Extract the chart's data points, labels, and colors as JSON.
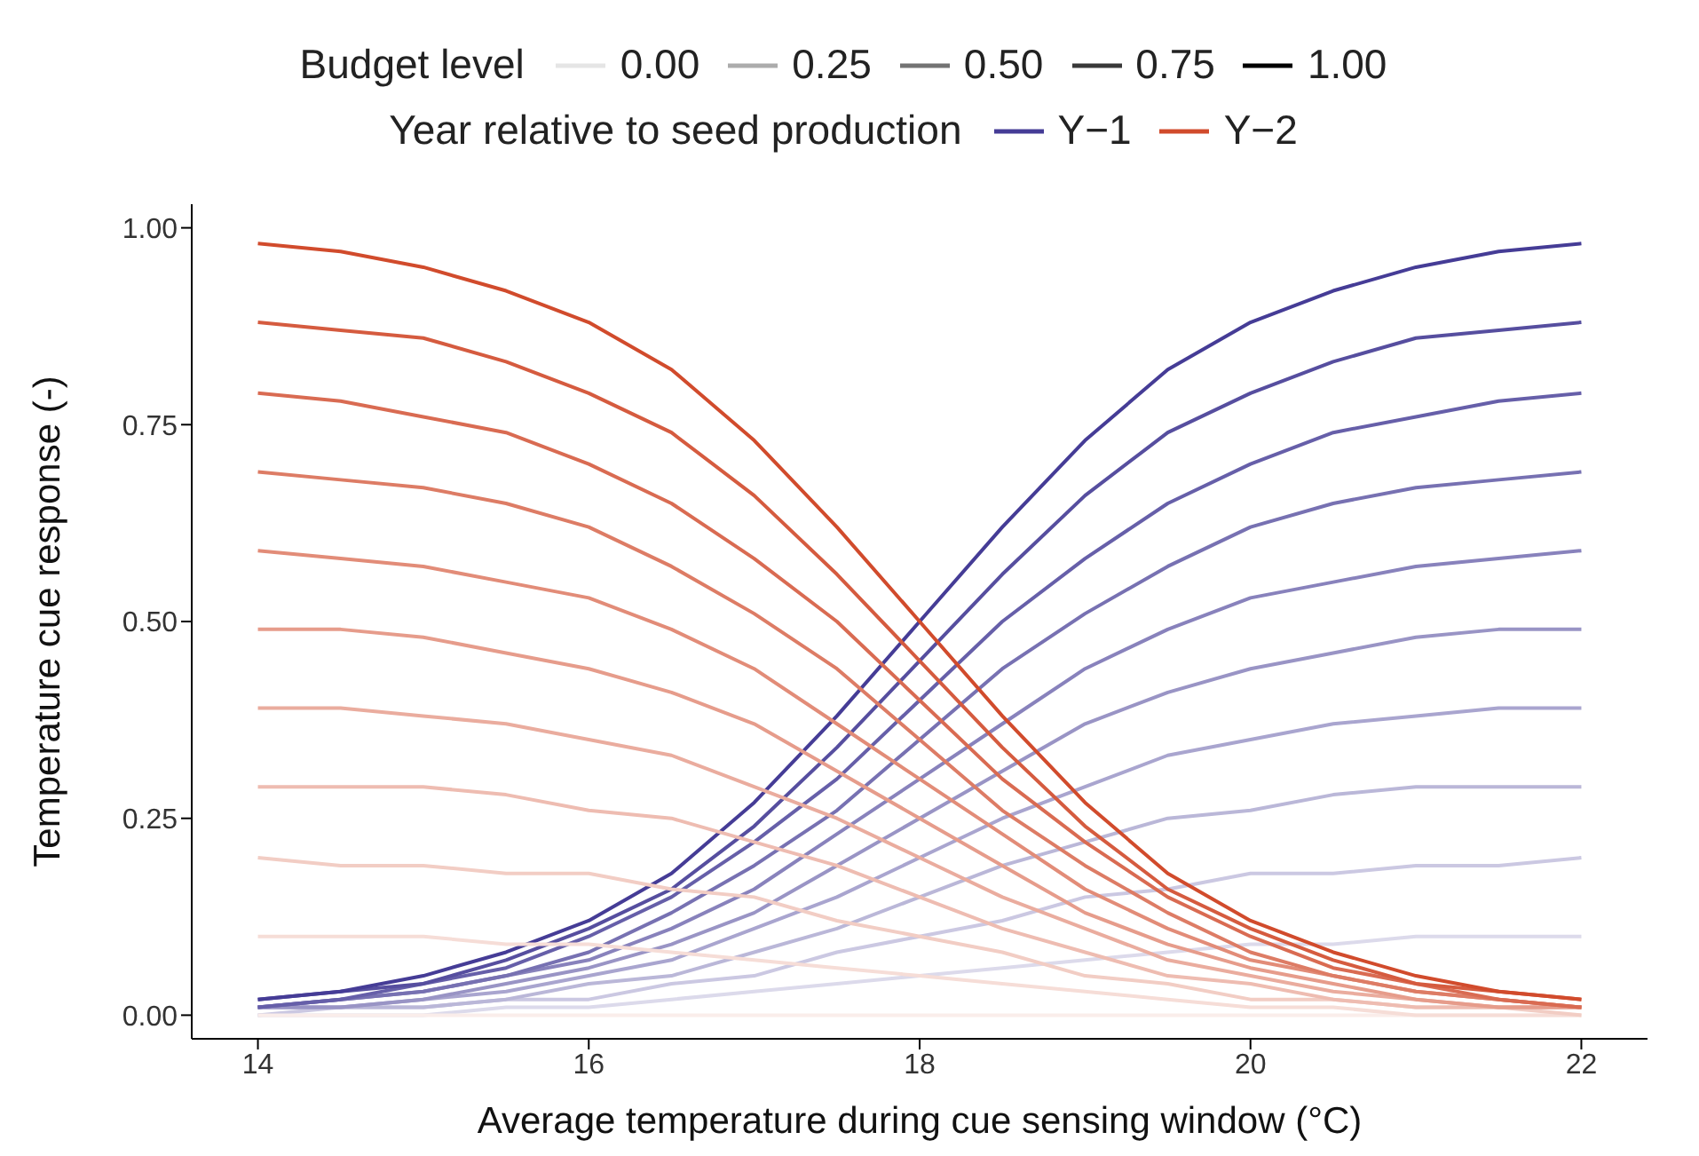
{
  "chart_data": {
    "type": "line",
    "xlabel": "Average temperature during cue sensing window (°C)",
    "ylabel": "Temperature cue response (-)",
    "legend_title": "Year relative to seed production",
    "legend": "top",
    "line_style": "solid",
    "annotations": [
      "Budget level",
      "0.00",
      "0.25",
      "0.50",
      "0.75",
      "1.00"
    ],
    "x": [
      14,
      14.5,
      15,
      15.5,
      16,
      16.5,
      17,
      17.5,
      18,
      18.5,
      19,
      19.5,
      20,
      20.5,
      21,
      21.5,
      22
    ],
    "xlim": [
      13.6,
      22.4
    ],
    "xticks": [
      14,
      16,
      18,
      20,
      22
    ],
    "ylim": [
      -0.03,
      1.03
    ],
    "yticks": [
      {
        "value": 0,
        "label": "0.00"
      },
      {
        "value": 0.25,
        "label": "0.25"
      },
      {
        "value": 0.5,
        "label": "0.50"
      },
      {
        "value": 0.75,
        "label": "0.75"
      },
      {
        "value": 1,
        "label": "1.00"
      }
    ],
    "series": [
      {
        "color": "#dcdaeb",
        "values": [
          0,
          0,
          0,
          0.01,
          0.01,
          0.02,
          0.03,
          0.04,
          0.05,
          0.06,
          0.07,
          0.08,
          0.09,
          0.09,
          0.1,
          0.1,
          0.1
        ]
      },
      {
        "color": "#cbc8e2",
        "values": [
          0,
          0.01,
          0.01,
          0.02,
          0.02,
          0.04,
          0.05,
          0.08,
          0.1,
          0.12,
          0.15,
          0.16,
          0.18,
          0.18,
          0.19,
          0.19,
          0.2
        ]
      },
      {
        "color": "#bab7d8",
        "values": [
          0.01,
          0.01,
          0.01,
          0.02,
          0.04,
          0.05,
          0.08,
          0.11,
          0.15,
          0.19,
          0.22,
          0.25,
          0.26,
          0.28,
          0.29,
          0.29,
          0.29
        ]
      },
      {
        "color": "#a9a5cf",
        "values": [
          0.01,
          0.01,
          0.02,
          0.03,
          0.05,
          0.07,
          0.11,
          0.15,
          0.2,
          0.25,
          0.29,
          0.33,
          0.35,
          0.37,
          0.38,
          0.39,
          0.39
        ]
      },
      {
        "color": "#9994c5",
        "values": [
          0.01,
          0.01,
          0.02,
          0.04,
          0.06,
          0.09,
          0.13,
          0.19,
          0.25,
          0.31,
          0.37,
          0.41,
          0.44,
          0.46,
          0.48,
          0.49,
          0.49
        ]
      },
      {
        "color": "#8882bc",
        "values": [
          0.01,
          0.02,
          0.03,
          0.05,
          0.07,
          0.11,
          0.16,
          0.23,
          0.3,
          0.37,
          0.44,
          0.49,
          0.53,
          0.55,
          0.57,
          0.58,
          0.59
        ]
      },
      {
        "color": "#7771b2",
        "values": [
          0.01,
          0.02,
          0.03,
          0.05,
          0.08,
          0.13,
          0.19,
          0.26,
          0.35,
          0.44,
          0.51,
          0.57,
          0.62,
          0.65,
          0.67,
          0.68,
          0.69
        ]
      },
      {
        "color": "#665fa9",
        "values": [
          0.01,
          0.02,
          0.04,
          0.06,
          0.1,
          0.15,
          0.22,
          0.3,
          0.4,
          0.5,
          0.58,
          0.65,
          0.7,
          0.74,
          0.76,
          0.78,
          0.79
        ]
      },
      {
        "color": "#564e9f",
        "values": [
          0.02,
          0.03,
          0.04,
          0.07,
          0.11,
          0.16,
          0.24,
          0.34,
          0.45,
          0.56,
          0.66,
          0.74,
          0.79,
          0.83,
          0.86,
          0.87,
          0.88
        ]
      },
      {
        "name": "Y−1",
        "color": "#453c96",
        "values": [
          0.02,
          0.03,
          0.05,
          0.08,
          0.12,
          0.18,
          0.27,
          0.38,
          0.5,
          0.62,
          0.73,
          0.82,
          0.88,
          0.92,
          0.95,
          0.97,
          0.98
        ]
      },
      {
        "color": "#faedea",
        "values": [
          0,
          0,
          0,
          0,
          0,
          0,
          0,
          0,
          0,
          0,
          0,
          0,
          0,
          0,
          0,
          0,
          0
        ]
      },
      {
        "color": "#f6ddd7",
        "values": [
          0.1,
          0.1,
          0.1,
          0.09,
          0.09,
          0.08,
          0.07,
          0.06,
          0.05,
          0.04,
          0.03,
          0.02,
          0.01,
          0.01,
          0,
          0,
          0
        ]
      },
      {
        "color": "#f2cdc4",
        "values": [
          0.2,
          0.19,
          0.19,
          0.18,
          0.18,
          0.16,
          0.15,
          0.12,
          0.1,
          0.08,
          0.05,
          0.04,
          0.02,
          0.02,
          0.01,
          0.01,
          0
        ]
      },
      {
        "color": "#eebcb1",
        "values": [
          0.29,
          0.29,
          0.29,
          0.28,
          0.26,
          0.25,
          0.22,
          0.19,
          0.15,
          0.11,
          0.08,
          0.05,
          0.04,
          0.02,
          0.01,
          0.01,
          0.01
        ]
      },
      {
        "color": "#eaac9e",
        "values": [
          0.39,
          0.39,
          0.38,
          0.37,
          0.35,
          0.33,
          0.29,
          0.25,
          0.2,
          0.15,
          0.11,
          0.07,
          0.05,
          0.03,
          0.02,
          0.01,
          0.01
        ]
      },
      {
        "color": "#e69c8b",
        "values": [
          0.49,
          0.49,
          0.48,
          0.46,
          0.44,
          0.41,
          0.37,
          0.31,
          0.25,
          0.19,
          0.13,
          0.09,
          0.06,
          0.04,
          0.02,
          0.01,
          0.01
        ]
      },
      {
        "color": "#e28c78",
        "values": [
          0.59,
          0.58,
          0.57,
          0.55,
          0.53,
          0.49,
          0.44,
          0.37,
          0.3,
          0.23,
          0.16,
          0.11,
          0.07,
          0.05,
          0.03,
          0.02,
          0.01
        ]
      },
      {
        "color": "#dd7c65",
        "values": [
          0.69,
          0.68,
          0.67,
          0.65,
          0.62,
          0.57,
          0.51,
          0.44,
          0.35,
          0.26,
          0.19,
          0.13,
          0.08,
          0.05,
          0.03,
          0.02,
          0.01
        ]
      },
      {
        "color": "#d96b52",
        "values": [
          0.79,
          0.78,
          0.76,
          0.74,
          0.7,
          0.65,
          0.58,
          0.5,
          0.4,
          0.3,
          0.22,
          0.15,
          0.1,
          0.06,
          0.04,
          0.02,
          0.01
        ]
      },
      {
        "color": "#d55b3f",
        "values": [
          0.88,
          0.87,
          0.86,
          0.83,
          0.79,
          0.74,
          0.66,
          0.56,
          0.45,
          0.34,
          0.24,
          0.16,
          0.11,
          0.07,
          0.04,
          0.03,
          0.02
        ]
      },
      {
        "name": "Y−2",
        "color": "#d14b2c",
        "values": [
          0.98,
          0.97,
          0.95,
          0.92,
          0.88,
          0.82,
          0.73,
          0.62,
          0.5,
          0.38,
          0.27,
          0.18,
          0.12,
          0.08,
          0.05,
          0.03,
          0.02
        ]
      }
    ]
  }
}
